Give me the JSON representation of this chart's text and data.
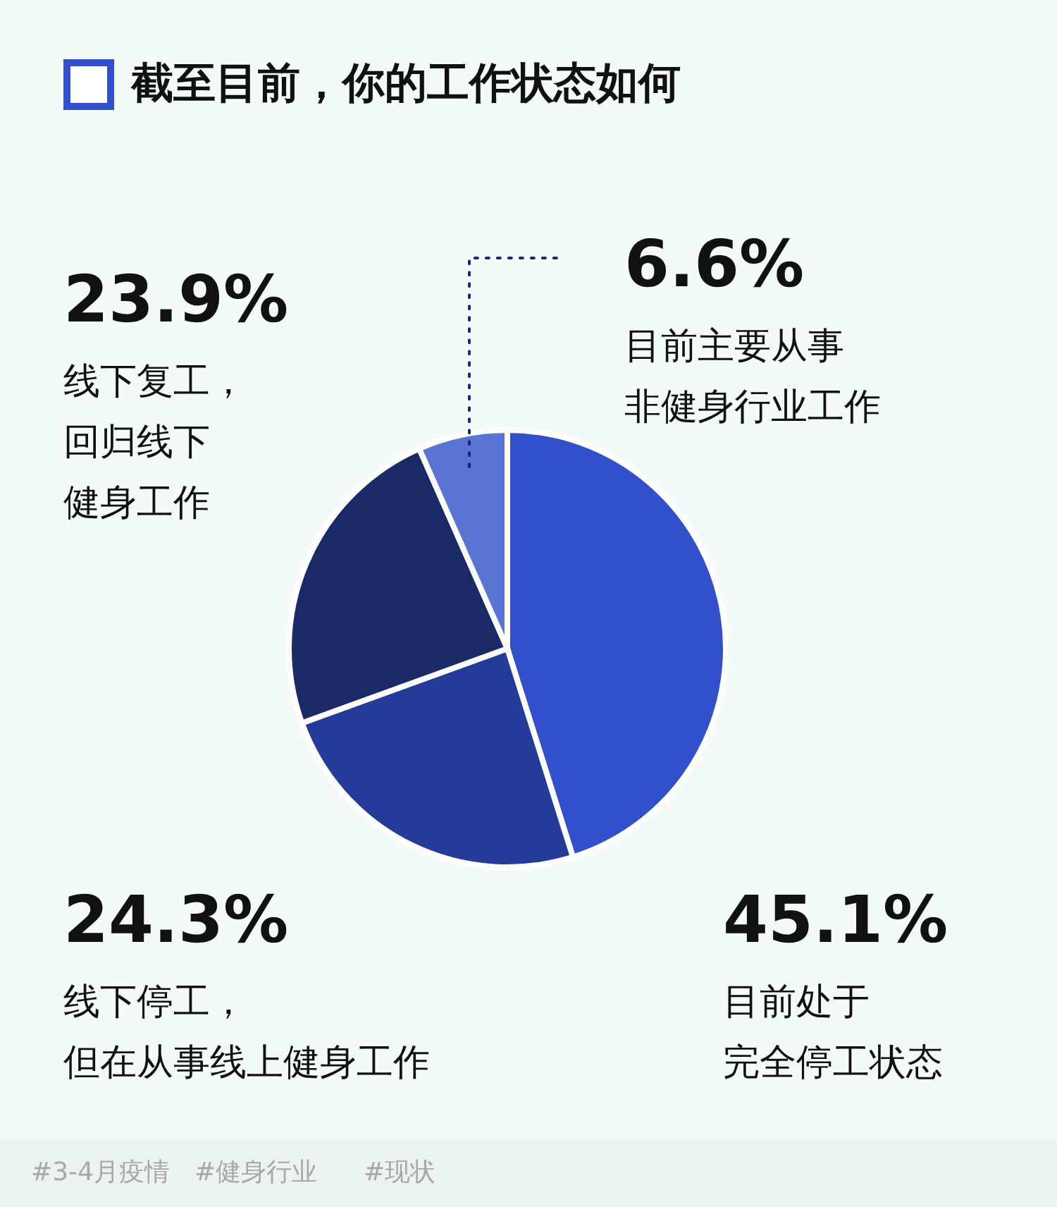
{
  "chart_data": {
    "type": "pie",
    "title": "截至目前，你的工作状态如何",
    "categories": [
      "目前处于完全停工状态",
      "线下停工，但在从事线上健身工作",
      "线下复工，回归线下健身工作",
      "目前主要从事非健身行业工作"
    ],
    "values": [
      45.1,
      24.3,
      23.9,
      6.6
    ],
    "colors": [
      "#3350cc",
      "#243b9a",
      "#1b2a66",
      "#5a74d4"
    ],
    "value_labels": [
      "45.1%",
      "24.3%",
      "23.9%",
      "6.6%"
    ],
    "annotations": [
      "#3-4月疫情",
      "#健身行业",
      "#现状"
    ]
  }
}
